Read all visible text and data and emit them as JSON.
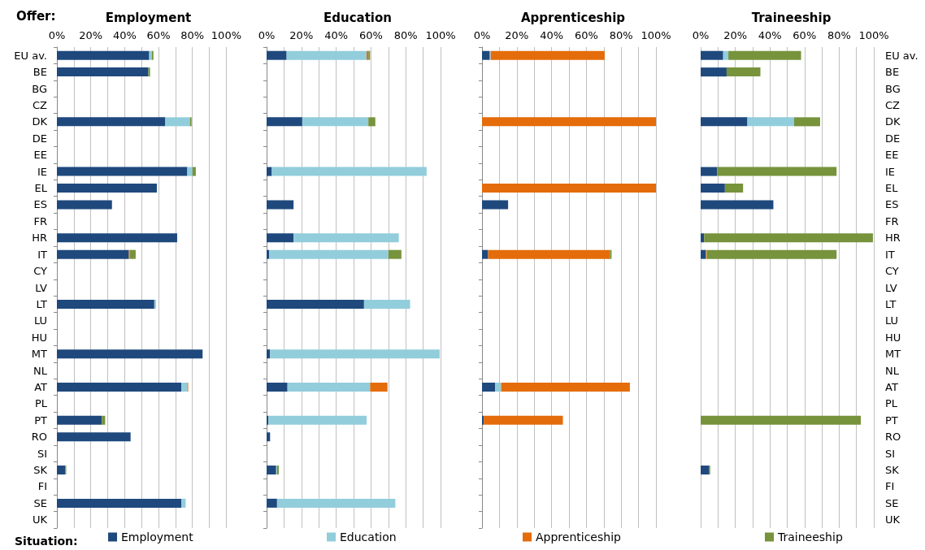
{
  "chart_data": [
    {
      "type": "bar",
      "orientation": "horizontal",
      "stacked": true,
      "title": "Employment",
      "annotations": [
        "Offer:"
      ],
      "legend": "bottom",
      "legend_title": "Situation:",
      "grid": "x",
      "categories": [
        "EU av.",
        "BE",
        "BG",
        "CZ",
        "DK",
        "DE",
        "EE",
        "IE",
        "EL",
        "ES",
        "FR",
        "HR",
        "IT",
        "CY",
        "LV",
        "LT",
        "LU",
        "HU",
        "MT",
        "NL",
        "AT",
        "PL",
        "PT",
        "RO",
        "SI",
        "SK",
        "FI",
        "SE",
        "UK"
      ],
      "xlim": [
        0,
        100
      ],
      "xticks": [
        {
          "value": 0,
          "label": "0%"
        },
        {
          "value": 10,
          "label": null
        },
        {
          "value": 20,
          "label": "20%"
        },
        {
          "value": 30,
          "label": null
        },
        {
          "value": 40,
          "label": "40%"
        },
        {
          "value": 50,
          "label": null
        },
        {
          "value": 60,
          "label": "60%"
        },
        {
          "value": 70,
          "label": null
        },
        {
          "value": 80,
          "label": "80%"
        },
        {
          "value": 90,
          "label": null
        },
        {
          "value": 100,
          "label": "100%"
        }
      ],
      "series": [
        {
          "name": "Employment",
          "color": "#1f497d",
          "values": [
            54.5,
            54,
            null,
            null,
            64,
            null,
            null,
            77,
            59,
            32.5,
            null,
            71,
            42.5,
            null,
            null,
            57.5,
            null,
            null,
            86,
            null,
            73.5,
            null,
            26.5,
            43.5,
            null,
            5,
            null,
            73.5,
            null
          ]
        },
        {
          "color": "#92cddc",
          "values": [
            1.5,
            null,
            null,
            null,
            14.5,
            null,
            null,
            3,
            null,
            null,
            null,
            null,
            null,
            null,
            null,
            1,
            null,
            null,
            null,
            null,
            3.5,
            null,
            null,
            null,
            null,
            null,
            null,
            2.5,
            null
          ]
        },
        {
          "color": "#e46c0a",
          "values": [
            null,
            null,
            null,
            null,
            null,
            null,
            null,
            null,
            null,
            null,
            null,
            null,
            0.5,
            null,
            null,
            null,
            null,
            null,
            null,
            null,
            0.5,
            null,
            null,
            null,
            null,
            null,
            null,
            null,
            null
          ]
        },
        {
          "color": "#77933c",
          "values": [
            1,
            1,
            null,
            null,
            1,
            null,
            null,
            2,
            null,
            null,
            null,
            null,
            3.5,
            null,
            null,
            null,
            null,
            null,
            null,
            null,
            null,
            null,
            2,
            null,
            null,
            0.5,
            null,
            null,
            null
          ]
        }
      ]
    },
    {
      "type": "bar",
      "orientation": "horizontal",
      "stacked": true,
      "title": "Education",
      "legend": "bottom",
      "grid": "x",
      "tick_labels": "x",
      "categories": [
        null,
        null,
        null,
        null,
        null,
        null,
        null,
        null,
        null,
        null,
        null,
        null,
        null,
        null,
        null,
        null,
        null,
        null,
        null,
        null,
        null,
        null,
        null,
        null,
        null,
        null,
        null,
        null,
        null
      ],
      "xlim": [
        0,
        100
      ],
      "xticks": [
        {
          "value": 0,
          "label": "0%"
        },
        {
          "value": 10,
          "label": null
        },
        {
          "value": 20,
          "label": "20%"
        },
        {
          "value": 30,
          "label": null
        },
        {
          "value": 40,
          "label": "40%"
        },
        {
          "value": 50,
          "label": null
        },
        {
          "value": 60,
          "label": "60%"
        },
        {
          "value": 70,
          "label": null
        },
        {
          "value": 80,
          "label": "80%"
        },
        {
          "value": 90,
          "label": null
        },
        {
          "value": 100,
          "label": "100%"
        }
      ],
      "series": [
        {
          "color": "#1f497d",
          "values": [
            11.5,
            null,
            null,
            null,
            20.5,
            null,
            null,
            3,
            null,
            15.5,
            null,
            15.5,
            1.5,
            null,
            null,
            56,
            null,
            null,
            2,
            null,
            12,
            null,
            1,
            2,
            null,
            5.5,
            null,
            6,
            null
          ]
        },
        {
          "name": "Education",
          "color": "#92cddc",
          "values": [
            46,
            null,
            null,
            null,
            38,
            null,
            null,
            89,
            null,
            null,
            null,
            60.5,
            68.5,
            null,
            null,
            26.5,
            null,
            null,
            97.5,
            null,
            47.5,
            null,
            56.5,
            null,
            null,
            0.5,
            null,
            68,
            null
          ]
        },
        {
          "color": "#e46c0a",
          "values": [
            1,
            null,
            null,
            null,
            null,
            null,
            null,
            null,
            null,
            null,
            null,
            null,
            null,
            null,
            null,
            null,
            null,
            null,
            null,
            null,
            10,
            null,
            null,
            null,
            null,
            null,
            null,
            null,
            null
          ]
        },
        {
          "color": "#77933c",
          "values": [
            1,
            null,
            null,
            null,
            4,
            null,
            null,
            null,
            null,
            null,
            null,
            null,
            7.5,
            null,
            null,
            null,
            null,
            null,
            null,
            null,
            null,
            null,
            null,
            null,
            null,
            1,
            null,
            null,
            null
          ]
        }
      ]
    },
    {
      "type": "bar",
      "orientation": "horizontal",
      "stacked": true,
      "title": "Apprenticeship",
      "legend": "bottom",
      "grid": "x",
      "tick_labels": "x",
      "categories": [
        null,
        null,
        null,
        null,
        null,
        null,
        null,
        null,
        null,
        null,
        null,
        null,
        null,
        null,
        null,
        null,
        null,
        null,
        null,
        null,
        null,
        null,
        null,
        null,
        null,
        null,
        null,
        null,
        null
      ],
      "xlim": [
        0,
        100
      ],
      "xticks": [
        {
          "value": 0,
          "label": "0%"
        },
        {
          "value": 10,
          "label": null
        },
        {
          "value": 20,
          "label": "20%"
        },
        {
          "value": 30,
          "label": null
        },
        {
          "value": 40,
          "label": "40%"
        },
        {
          "value": 50,
          "label": null
        },
        {
          "value": 60,
          "label": "60%"
        },
        {
          "value": 70,
          "label": null
        },
        {
          "value": 80,
          "label": "80%"
        },
        {
          "value": 90,
          "label": null
        },
        {
          "value": 100,
          "label": "100%"
        }
      ],
      "series": [
        {
          "color": "#1f497d",
          "values": [
            4.5,
            null,
            null,
            null,
            null,
            null,
            null,
            null,
            null,
            15,
            null,
            null,
            3.5,
            null,
            null,
            null,
            null,
            null,
            null,
            null,
            7.5,
            null,
            1,
            null,
            null,
            null,
            null,
            null,
            null
          ]
        },
        {
          "color": "#92cddc",
          "values": [
            0.5,
            null,
            null,
            null,
            null,
            null,
            null,
            null,
            null,
            null,
            null,
            null,
            null,
            null,
            null,
            null,
            null,
            null,
            null,
            null,
            3.5,
            null,
            null,
            null,
            null,
            null,
            null,
            null,
            null
          ]
        },
        {
          "name": "Apprenticeship",
          "color": "#e46c0a",
          "values": [
            65.5,
            null,
            null,
            null,
            100,
            null,
            null,
            null,
            100,
            null,
            null,
            null,
            70,
            null,
            null,
            null,
            null,
            null,
            null,
            null,
            74,
            null,
            45.5,
            null,
            null,
            null,
            null,
            null,
            null
          ]
        },
        {
          "color": "#77933c",
          "values": [
            null,
            null,
            null,
            null,
            null,
            null,
            null,
            null,
            null,
            null,
            null,
            null,
            1,
            null,
            null,
            null,
            null,
            null,
            null,
            null,
            null,
            null,
            null,
            null,
            null,
            null,
            null,
            null,
            null
          ]
        }
      ]
    },
    {
      "type": "bar",
      "orientation": "horizontal",
      "stacked": true,
      "title": "Traineeship",
      "legend": "bottom",
      "grid": "x",
      "categories": [
        "EU av.",
        "BE",
        "BG",
        "CZ",
        "DK",
        "DE",
        "EE",
        "IE",
        "EL",
        "ES",
        "FR",
        "HR",
        "IT",
        "CY",
        "LV",
        "LT",
        "LU",
        "HU",
        "MT",
        "NL",
        "AT",
        "PL",
        "PT",
        "RO",
        "SI",
        "SK",
        "FI",
        "SE",
        "UK"
      ],
      "xlim": [
        0,
        100
      ],
      "xticks": [
        {
          "value": 0,
          "label": "0%"
        },
        {
          "value": 10,
          "label": null
        },
        {
          "value": 20,
          "label": "20%"
        },
        {
          "value": 30,
          "label": null
        },
        {
          "value": 40,
          "label": "40%"
        },
        {
          "value": 50,
          "label": null
        },
        {
          "value": 60,
          "label": "60%"
        },
        {
          "value": 70,
          "label": null
        },
        {
          "value": 80,
          "label": "80%"
        },
        {
          "value": 90,
          "label": null
        },
        {
          "value": 100,
          "label": "100%"
        }
      ],
      "series": [
        {
          "color": "#1f497d",
          "values": [
            13,
            15,
            null,
            null,
            27,
            null,
            null,
            9.5,
            14,
            42,
            null,
            2,
            3,
            null,
            null,
            null,
            null,
            null,
            null,
            null,
            null,
            null,
            null,
            null,
            null,
            5,
            null,
            null,
            null
          ]
        },
        {
          "color": "#92cddc",
          "values": [
            3,
            null,
            null,
            null,
            27,
            null,
            null,
            null,
            null,
            null,
            null,
            null,
            null,
            null,
            null,
            null,
            null,
            null,
            null,
            null,
            null,
            null,
            null,
            null,
            null,
            null,
            null,
            null,
            null
          ]
        },
        {
          "color": "#e46c0a",
          "values": [
            null,
            null,
            null,
            null,
            null,
            null,
            null,
            null,
            null,
            null,
            null,
            null,
            0.5,
            null,
            null,
            null,
            null,
            null,
            null,
            null,
            null,
            null,
            null,
            null,
            null,
            null,
            null,
            null,
            null
          ]
        },
        {
          "name": "Traineeship",
          "color": "#77933c",
          "values": [
            42,
            19.5,
            null,
            null,
            15,
            null,
            null,
            69,
            10.5,
            null,
            null,
            97.5,
            75,
            null,
            null,
            null,
            null,
            null,
            null,
            null,
            null,
            null,
            92.5,
            null,
            null,
            0.5,
            null,
            null,
            null
          ]
        }
      ]
    }
  ]
}
